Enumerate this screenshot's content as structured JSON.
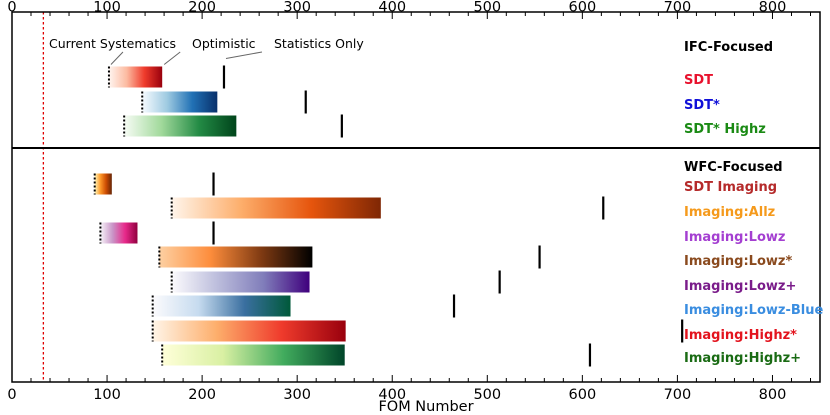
{
  "chart_data": {
    "type": "bar",
    "xlabel": "FOM Number",
    "xlim": [
      0,
      850
    ],
    "xticks": [
      0,
      100,
      200,
      300,
      400,
      500,
      600,
      700,
      800
    ],
    "reference_line_x": 33,
    "annotations": {
      "current": "Current Systematics",
      "optimistic": "Optimistic",
      "stats": "Statistics Only"
    },
    "panels": [
      {
        "header": "IFC-Focused",
        "rows": [
          {
            "name": "SDT",
            "color": "#e8112d",
            "current": 102,
            "optimistic": 158,
            "stats": 223,
            "cmap": [
              "#fff5f0",
              "#fcbba1",
              "#ef3b2c",
              "#99000d"
            ]
          },
          {
            "name": "SDT*",
            "color": "#1010d8",
            "current": 137,
            "optimistic": 216,
            "stats": 309,
            "cmap": [
              "#f7fbff",
              "#9ecae1",
              "#2171b5",
              "#08306b"
            ]
          },
          {
            "name": "SDT* Highz",
            "color": "#1a8a14",
            "current": 118,
            "optimistic": 236,
            "stats": 347,
            "cmap": [
              "#f7fcf5",
              "#a1d99b",
              "#238b45",
              "#00441b"
            ]
          }
        ]
      },
      {
        "header": "WFC-Focused",
        "rows": [
          {
            "name": "SDT Imaging",
            "color": "#b52a2a",
            "current": 87,
            "optimistic": 105,
            "stats": 212,
            "cmap": [
              "#fff7bc",
              "#fe9929",
              "#cc4c02",
              "#662506"
            ]
          },
          {
            "name": "Imaging:Allz",
            "color": "#f59a1c",
            "current": 168,
            "optimistic": 388,
            "stats": 622,
            "cmap": [
              "#fff5eb",
              "#fdae6b",
              "#e6550d",
              "#7f2704"
            ]
          },
          {
            "name": "Imaging:Lowz",
            "color": "#a43fd1",
            "current": 93,
            "optimistic": 132,
            "stats": 212,
            "cmap": [
              "#f7f4f9",
              "#c994c7",
              "#e7298a",
              "#91003f"
            ]
          },
          {
            "name": "Imaging:Lowz*",
            "color": "#8a4a1e",
            "current": 155,
            "optimistic": 316,
            "stats": 555,
            "cmap": [
              "#fdd0a2",
              "#fd8d3c",
              "#7f3a12",
              "#000000"
            ]
          },
          {
            "name": "Imaging:Lowz+",
            "color": "#7a1c8a",
            "current": 168,
            "optimistic": 313,
            "stats": 513,
            "cmap": [
              "#fcfbfd",
              "#bcbddc",
              "#807dba",
              "#3f007d"
            ]
          },
          {
            "name": "Imaging:Lowz-Blue",
            "color": "#3a8de0",
            "current": 148,
            "optimistic": 293,
            "stats": 465,
            "cmap": [
              "#fcfbfd",
              "#c6dbef",
              "#3a6fa0",
              "#00593a"
            ]
          },
          {
            "name": "Imaging:Highz*",
            "color": "#e3141e",
            "current": 148,
            "optimistic": 351,
            "stats": 705,
            "cmap": [
              "#fff5e8",
              "#fdae6b",
              "#ef3b2c",
              "#99000d"
            ]
          },
          {
            "name": "Imaging:Highz+",
            "color": "#1a6b14",
            "current": 158,
            "optimistic": 350,
            "stats": 608,
            "cmap": [
              "#ffffd9",
              "#d9f0a3",
              "#41ab5d",
              "#004529"
            ]
          }
        ]
      }
    ]
  }
}
